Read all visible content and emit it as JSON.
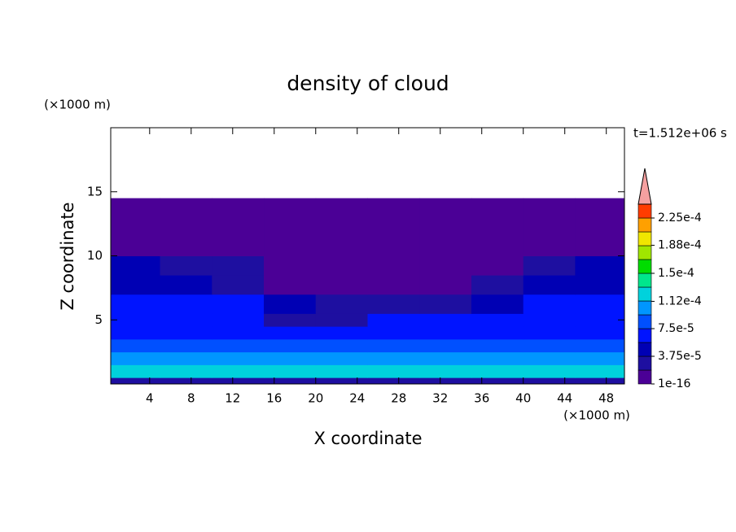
{
  "chart_data": {
    "type": "contour",
    "title": "density of cloud",
    "x_label": "X coordinate",
    "y_label": "Z coordinate",
    "x_unit": "(×1000 m)",
    "y_unit": "(×1000 m)",
    "time_label": "t=1.512e+06 s",
    "xlim": [
      0.25,
      49.75
    ],
    "ylim": [
      0,
      20
    ],
    "xticks": [
      4,
      8,
      12,
      16,
      20,
      24,
      28,
      32,
      36,
      40,
      44,
      48
    ],
    "yticks": [
      5,
      10,
      15
    ],
    "x_edges": [
      0.25,
      5,
      10,
      15,
      20,
      25,
      30,
      35,
      40,
      45,
      49.75
    ],
    "z_edges": [
      0,
      0.5,
      1.5,
      2.5,
      3.5,
      4.5,
      5.5,
      7,
      8.5,
      10,
      14.5
    ],
    "values": [
      [
        3e-05,
        3e-05,
        3e-05,
        3e-05,
        3e-05,
        3e-05,
        3e-05,
        3e-05,
        3e-05,
        3e-05
      ],
      [
        0.00012,
        0.000125,
        0.00012,
        0.000125,
        0.00012,
        0.00012,
        0.000125,
        0.00012,
        0.000125,
        0.00012
      ],
      [
        0.0001,
        0.000105,
        9.5e-05,
        0.0001,
        0.000105,
        0.0001,
        9.5e-05,
        0.0001,
        0.000105,
        0.0001
      ],
      [
        8e-05,
        8.5e-05,
        8e-05,
        7.6e-05,
        8e-05,
        8e-05,
        8.5e-05,
        8e-05,
        8e-05,
        8.5e-05
      ],
      [
        7e-05,
        7e-05,
        6.5e-05,
        6e-05,
        6e-05,
        6.5e-05,
        6e-05,
        6.5e-05,
        7e-05,
        7e-05
      ],
      [
        6.5e-05,
        6.5e-05,
        6e-05,
        3e-05,
        2.5e-05,
        6e-05,
        6e-05,
        6.5e-05,
        6.5e-05,
        6.5e-05
      ],
      [
        6e-05,
        6e-05,
        5.8e-05,
        4e-05,
        2.5e-05,
        2.5e-05,
        3e-05,
        4.5e-05,
        5.8e-05,
        6e-05
      ],
      [
        5e-05,
        4.5e-05,
        2.5e-05,
        5e-06,
        5e-06,
        5e-06,
        5e-06,
        2.5e-05,
        4.5e-05,
        5e-05
      ],
      [
        4e-05,
        3e-05,
        2.5e-05,
        5e-06,
        5e-06,
        5e-06,
        5e-06,
        5e-06,
        2.5e-05,
        4e-05
      ],
      [
        5e-06,
        5e-06,
        5e-06,
        5e-06,
        5e-06,
        5e-06,
        5e-06,
        5e-06,
        5e-06,
        5e-06
      ]
    ],
    "levels": [
      1e-16,
      1.875e-05,
      3.75e-05,
      5.625e-05,
      7.5e-05,
      9.375e-05,
      0.0001125,
      0.00013125,
      0.00015,
      0.00016875,
      0.0001875,
      0.00020625,
      0.000225,
      0.00024375
    ],
    "colors": [
      "#4b0096",
      "#1e0fa0",
      "#0000b4",
      "#0014ff",
      "#0050ff",
      "#0096ff",
      "#00d2dc",
      "#00e68c",
      "#00dc00",
      "#a0e600",
      "#f0e600",
      "#ffa000",
      "#ff3c00"
    ],
    "extend_color": "#f5a0a0",
    "colorbar_ticks": [
      1e-16,
      {
        "value": 3.75e-05,
        "label": "3.75e-5"
      },
      {
        "value": 7.5e-05,
        "label": "7.5e-5"
      },
      {
        "value": 0.000112,
        "label": "1.12e-4"
      },
      {
        "value": 0.00015,
        "label": "1.5e-4"
      },
      {
        "value": 0.000188,
        "label": "1.88e-4"
      },
      {
        "value": 0.000225,
        "label": "2.25e-4"
      }
    ]
  }
}
